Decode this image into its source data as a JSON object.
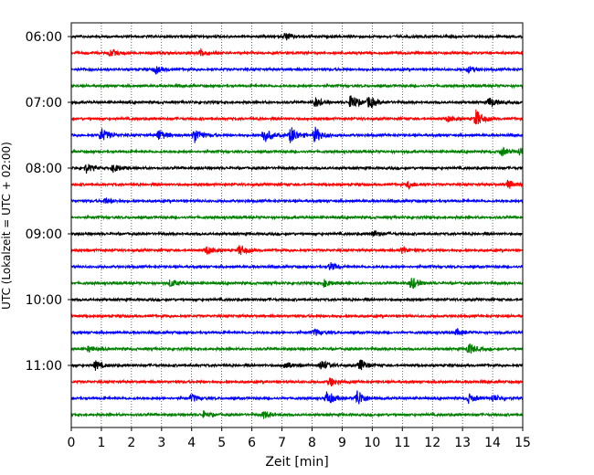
{
  "chart_data": {
    "type": "line",
    "title": "",
    "xlabel": "Zeit  [min]",
    "ylabel": "UTC (Lokalzeit = UTC + 02:00)",
    "xlim": [
      0,
      15
    ],
    "x_ticks": [
      "0",
      "1",
      "2",
      "3",
      "4",
      "5",
      "6",
      "7",
      "8",
      "9",
      "10",
      "11",
      "12",
      "13",
      "14",
      "15"
    ],
    "y_tick_labels": [
      "06:00",
      "07:00",
      "08:00",
      "09:00",
      "10:00",
      "11:00"
    ],
    "grid": "vertical dotted",
    "trace_interval_min": 15,
    "trace_colors": [
      "#000000",
      "#ff0000",
      "#0000ff",
      "#008000"
    ],
    "traces": [
      {
        "start": "06:00",
        "color": "#000000",
        "events": [
          {
            "t": 7.1,
            "amp": 0.4
          }
        ]
      },
      {
        "start": "06:15",
        "color": "#ff0000",
        "events": [
          {
            "t": 1.3,
            "amp": 0.35
          },
          {
            "t": 4.3,
            "amp": 0.4
          }
        ]
      },
      {
        "start": "06:30",
        "color": "#0000ff",
        "events": [
          {
            "t": 2.8,
            "amp": 0.35
          },
          {
            "t": 13.2,
            "amp": 0.3
          }
        ]
      },
      {
        "start": "06:45",
        "color": "#008000",
        "events": []
      },
      {
        "start": "07:00",
        "color": "#000000",
        "events": [
          {
            "t": 8.1,
            "amp": 0.5
          },
          {
            "t": 9.3,
            "amp": 0.8
          },
          {
            "t": 9.9,
            "amp": 0.6
          },
          {
            "t": 13.9,
            "amp": 0.5
          }
        ]
      },
      {
        "start": "07:15",
        "color": "#ff0000",
        "events": [
          {
            "t": 12.5,
            "amp": 0.3
          },
          {
            "t": 13.45,
            "amp": 0.9
          }
        ]
      },
      {
        "start": "07:30",
        "color": "#0000ff",
        "events": [
          {
            "t": 1.0,
            "amp": 0.7
          },
          {
            "t": 2.9,
            "amp": 0.6
          },
          {
            "t": 4.1,
            "amp": 0.8
          },
          {
            "t": 6.4,
            "amp": 0.8
          },
          {
            "t": 7.3,
            "amp": 0.9
          },
          {
            "t": 8.1,
            "amp": 0.8
          }
        ]
      },
      {
        "start": "07:45",
        "color": "#008000",
        "events": [
          {
            "t": 14.3,
            "amp": 0.4
          },
          {
            "t": 14.9,
            "amp": 0.4
          }
        ]
      },
      {
        "start": "08:00",
        "color": "#000000",
        "events": [
          {
            "t": 0.5,
            "amp": 0.45
          },
          {
            "t": 1.4,
            "amp": 0.4
          }
        ]
      },
      {
        "start": "08:15",
        "color": "#ff0000",
        "events": [
          {
            "t": 11.2,
            "amp": 0.35
          },
          {
            "t": 14.5,
            "amp": 0.45
          }
        ]
      },
      {
        "start": "08:30",
        "color": "#0000ff",
        "events": [
          {
            "t": 1.1,
            "amp": 0.3
          }
        ]
      },
      {
        "start": "08:45",
        "color": "#008000",
        "events": []
      },
      {
        "start": "09:00",
        "color": "#000000",
        "events": [
          {
            "t": 10.0,
            "amp": 0.35
          }
        ]
      },
      {
        "start": "09:15",
        "color": "#ff0000",
        "events": [
          {
            "t": 4.5,
            "amp": 0.4
          },
          {
            "t": 5.6,
            "amp": 0.55
          },
          {
            "t": 11.0,
            "amp": 0.3
          }
        ]
      },
      {
        "start": "09:30",
        "color": "#0000ff",
        "events": [
          {
            "t": 8.6,
            "amp": 0.4
          }
        ]
      },
      {
        "start": "09:45",
        "color": "#008000",
        "events": [
          {
            "t": 3.3,
            "amp": 0.4
          },
          {
            "t": 8.4,
            "amp": 0.35
          },
          {
            "t": 11.3,
            "amp": 0.65
          }
        ]
      },
      {
        "start": "10:00",
        "color": "#000000",
        "events": []
      },
      {
        "start": "10:15",
        "color": "#ff0000",
        "events": []
      },
      {
        "start": "10:30",
        "color": "#0000ff",
        "events": [
          {
            "t": 8.1,
            "amp": 0.3
          },
          {
            "t": 12.8,
            "amp": 0.3
          }
        ]
      },
      {
        "start": "10:45",
        "color": "#008000",
        "events": [
          {
            "t": 0.6,
            "amp": 0.3
          },
          {
            "t": 13.2,
            "amp": 0.6
          }
        ]
      },
      {
        "start": "11:00",
        "color": "#000000",
        "events": [
          {
            "t": 0.8,
            "amp": 0.45
          },
          {
            "t": 7.1,
            "amp": 0.4
          },
          {
            "t": 8.3,
            "amp": 0.55
          },
          {
            "t": 9.6,
            "amp": 0.6
          }
        ]
      },
      {
        "start": "11:15",
        "color": "#ff0000",
        "events": [
          {
            "t": 8.6,
            "amp": 0.45
          }
        ]
      },
      {
        "start": "11:30",
        "color": "#0000ff",
        "events": [
          {
            "t": 4.0,
            "amp": 0.35
          },
          {
            "t": 8.5,
            "amp": 0.75
          },
          {
            "t": 9.5,
            "amp": 0.9
          },
          {
            "t": 13.2,
            "amp": 0.45
          },
          {
            "t": 14.0,
            "amp": 0.35
          }
        ]
      },
      {
        "start": "11:45",
        "color": "#008000",
        "events": [
          {
            "t": 6.4,
            "amp": 0.35
          },
          {
            "t": 4.4,
            "amp": 0.3
          }
        ]
      }
    ]
  }
}
